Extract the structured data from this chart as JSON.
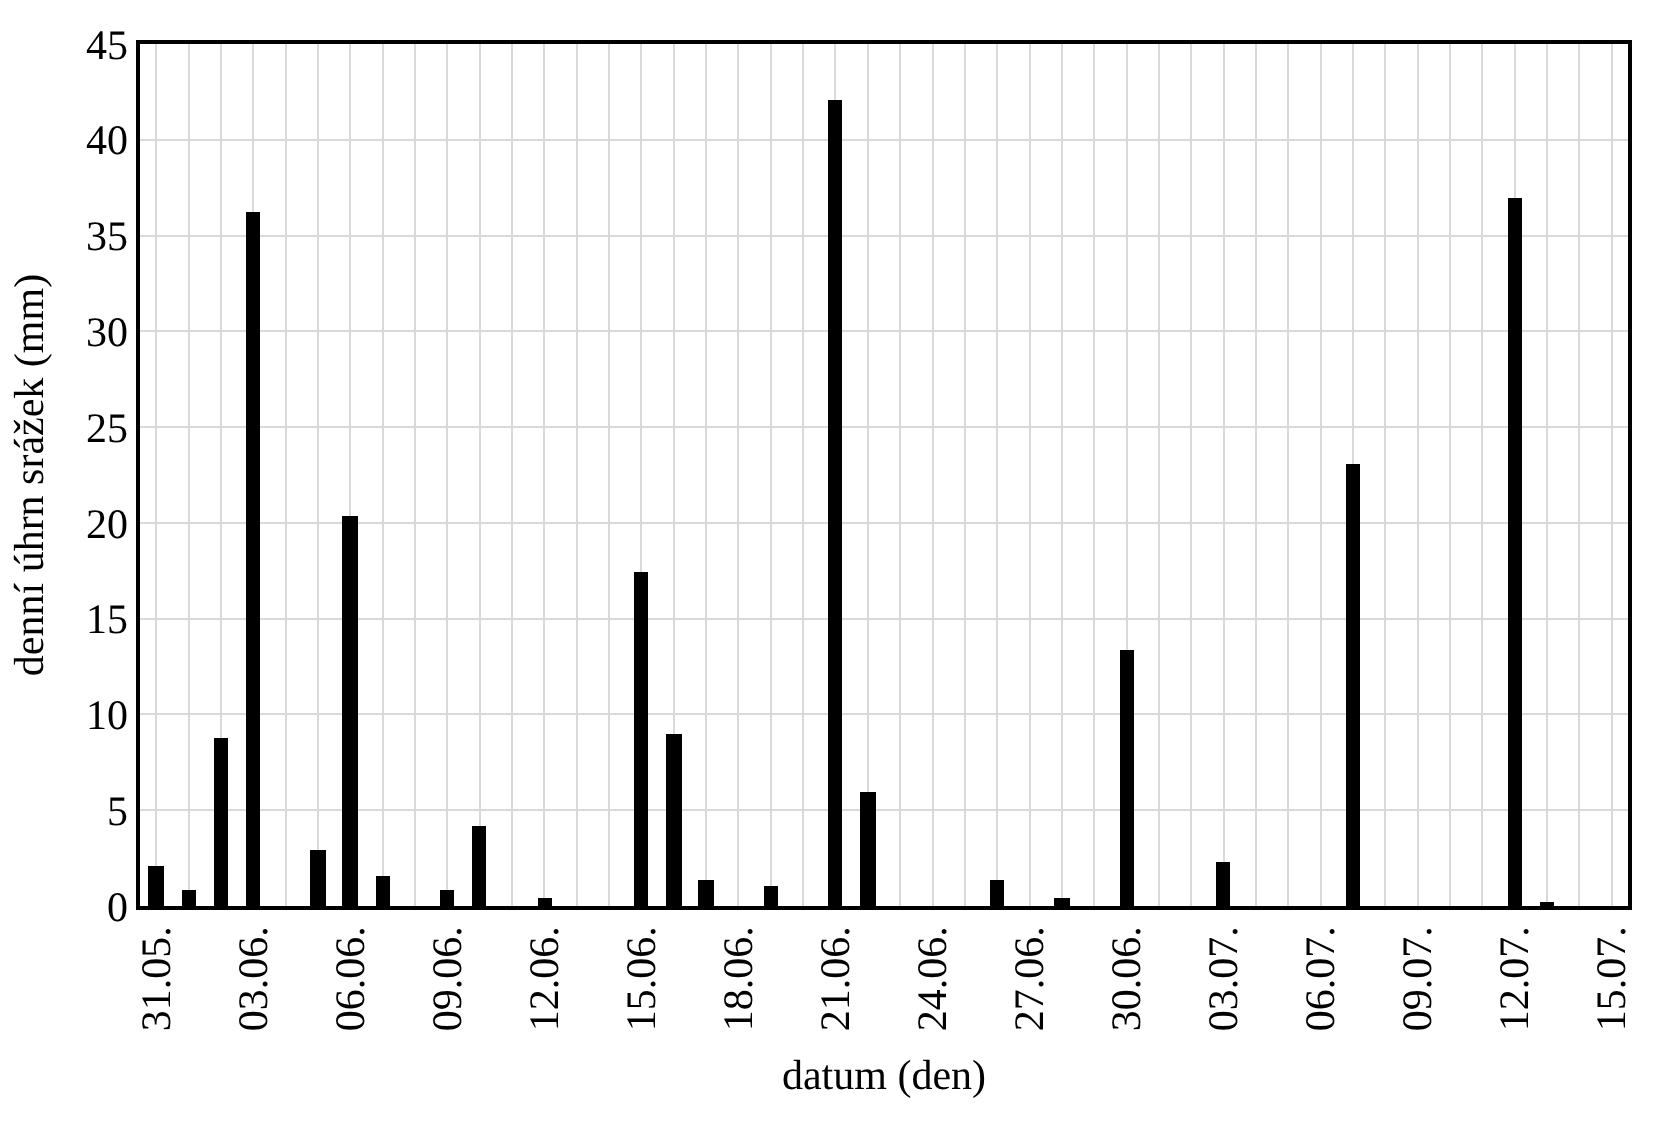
{
  "chart_data": {
    "type": "bar",
    "xlabel": "datum (den)",
    "ylabel": "denní úhrn srážek (mm)",
    "categories": [
      "31.05.",
      null,
      null,
      "03.06.",
      null,
      null,
      "06.06.",
      null,
      null,
      "09.06.",
      null,
      null,
      "12.06.",
      null,
      null,
      "15.06.",
      null,
      null,
      "18.06.",
      null,
      null,
      "21.06.",
      null,
      null,
      "24.06.",
      null,
      null,
      "27.06.",
      null,
      null,
      "30.06.",
      null,
      null,
      "03.07.",
      null,
      null,
      "06.07.",
      null,
      null,
      "09.07.",
      null,
      null,
      "12.07.",
      null,
      null,
      "15.07."
    ],
    "values": [
      2.1,
      0.8,
      8.8,
      36.2,
      0,
      2.9,
      20.4,
      1.6,
      0,
      0.8,
      4.2,
      0,
      0.4,
      0,
      0,
      17.4,
      9.0,
      1.4,
      0,
      1.0,
      0,
      42.1,
      5.9,
      0,
      0,
      0,
      1.4,
      0,
      0.4,
      0,
      13.4,
      0,
      0,
      2.3,
      0,
      0,
      0,
      23.1,
      0,
      0,
      0,
      0,
      37.0,
      0.2,
      0,
      0
    ],
    "color": "#000000",
    "ylim": [
      0,
      45
    ],
    "yticks": [
      0,
      5,
      10,
      15,
      20,
      25,
      30,
      35,
      40,
      45
    ],
    "grid": true,
    "legend": false
  }
}
